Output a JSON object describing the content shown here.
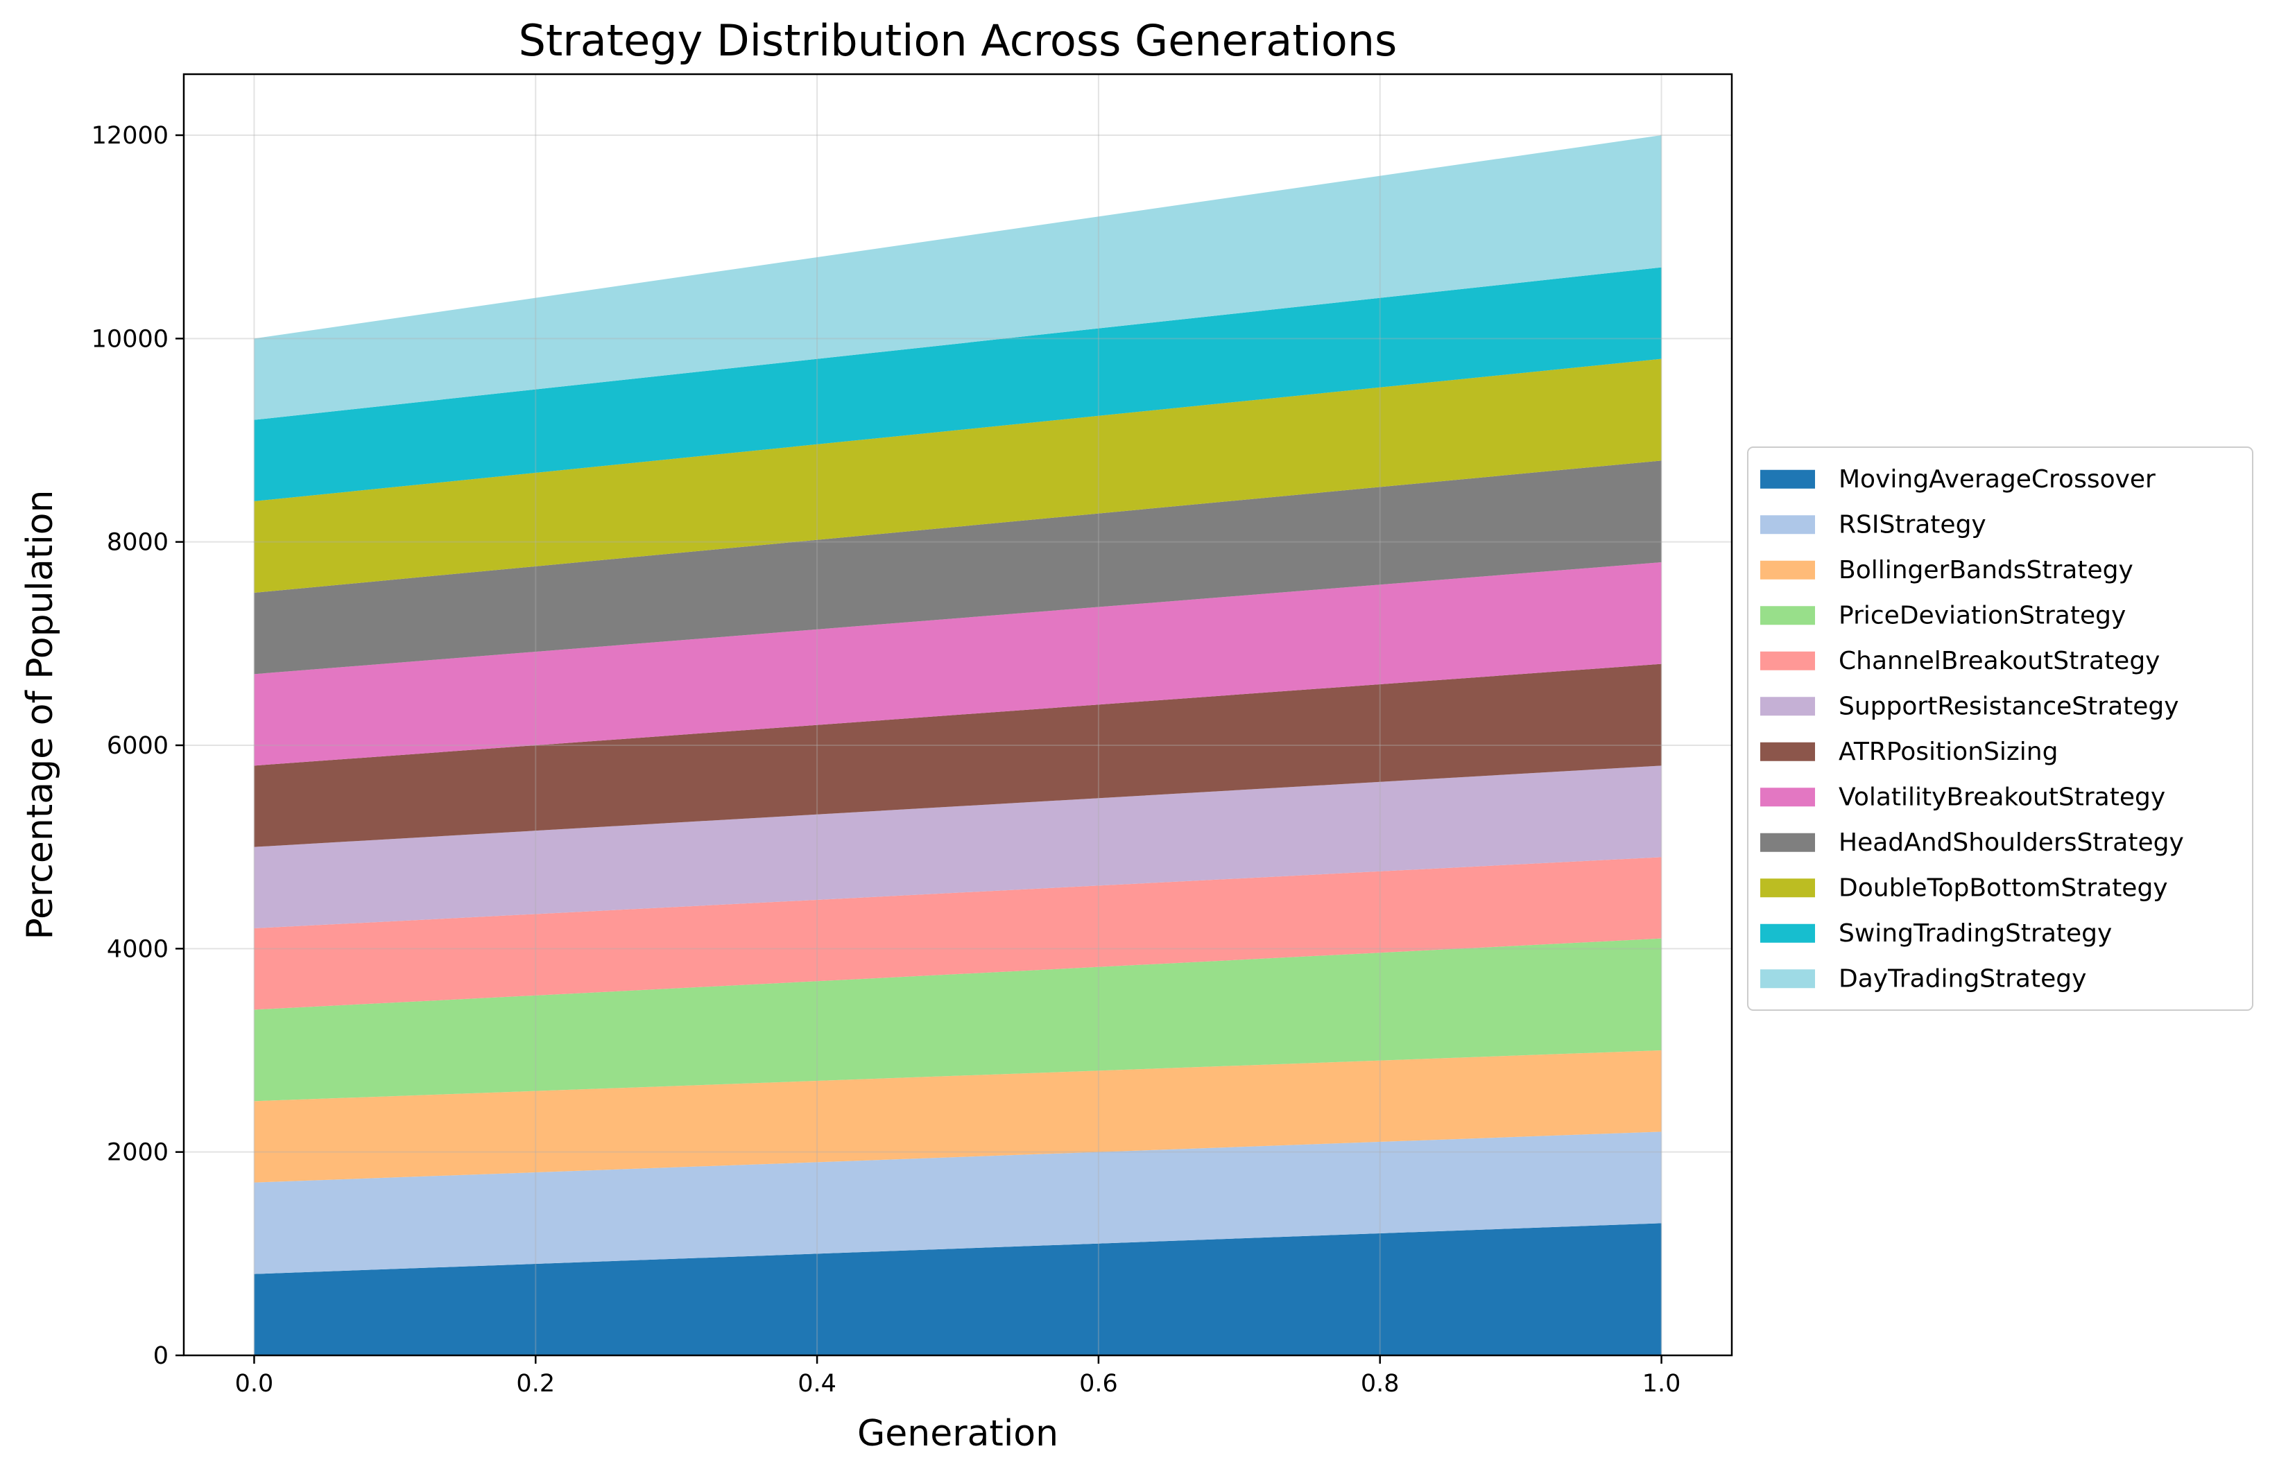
{
  "chart_data": {
    "type": "area",
    "stacked": true,
    "title": "Strategy Distribution Across Generations",
    "xlabel": "Generation",
    "ylabel": "Percentage of Population",
    "x": [
      0.0,
      1.0
    ],
    "xlim": [
      -0.05,
      1.05
    ],
    "ylim": [
      0,
      12600
    ],
    "xticks": [
      0.0,
      0.2,
      0.4,
      0.6,
      0.8,
      1.0
    ],
    "xtick_labels": [
      "0.0",
      "0.2",
      "0.4",
      "0.6",
      "0.8",
      "1.0"
    ],
    "yticks": [
      0,
      2000,
      4000,
      6000,
      8000,
      10000,
      12000
    ],
    "ytick_labels": [
      "0",
      "2000",
      "4000",
      "6000",
      "8000",
      "10000",
      "12000"
    ],
    "grid": true,
    "legend_position": "center-right, outside plot",
    "series": [
      {
        "name": "MovingAverageCrossover",
        "values": [
          800,
          1300
        ],
        "color": "#1f77b4"
      },
      {
        "name": "RSIStrategy",
        "values": [
          900,
          900
        ],
        "color": "#aec7e8"
      },
      {
        "name": "BollingerBandsStrategy",
        "values": [
          800,
          800
        ],
        "color": "#ffbb78"
      },
      {
        "name": "PriceDeviationStrategy",
        "values": [
          900,
          1100
        ],
        "color": "#98df8a"
      },
      {
        "name": "ChannelBreakoutStrategy",
        "values": [
          800,
          800
        ],
        "color": "#ff9896"
      },
      {
        "name": "SupportResistanceStrategy",
        "values": [
          800,
          900
        ],
        "color": "#c5b0d5"
      },
      {
        "name": "ATRPositionSizing",
        "values": [
          800,
          1000
        ],
        "color": "#8c564b"
      },
      {
        "name": "VolatilityBreakoutStrategy",
        "values": [
          900,
          1000
        ],
        "color": "#e377c2"
      },
      {
        "name": "HeadAndShouldersStrategy",
        "values": [
          800,
          1000
        ],
        "color": "#7f7f7f"
      },
      {
        "name": "DoubleTopBottomStrategy",
        "values": [
          900,
          1000
        ],
        "color": "#bcbd22"
      },
      {
        "name": "SwingTradingStrategy",
        "values": [
          800,
          900
        ],
        "color": "#17becf"
      },
      {
        "name": "DayTradingStrategy",
        "values": [
          800,
          1300
        ],
        "color": "#9edae5"
      }
    ]
  }
}
